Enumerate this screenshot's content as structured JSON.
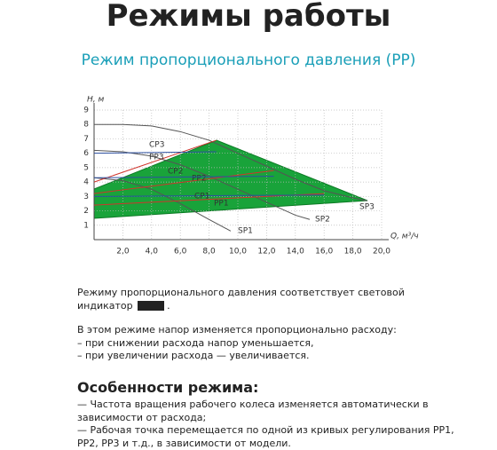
{
  "header": {
    "title": "Режимы работы",
    "subtitle": "Режим пропорционального давления (PP)"
  },
  "chart_data": {
    "type": "line",
    "xlabel": "Q, м³/ч",
    "ylabel": "H, м",
    "xlim": [
      0,
      20
    ],
    "ylim": [
      0,
      9
    ],
    "xticks": [
      {
        "value": 2,
        "label": "2,0"
      },
      {
        "value": 4,
        "label": "4,0"
      },
      {
        "value": 6,
        "label": "6,0"
      },
      {
        "value": 8,
        "label": "8,0"
      },
      {
        "value": 10,
        "label": "10,0"
      },
      {
        "value": 12,
        "label": "12,0"
      },
      {
        "value": 14,
        "label": "14,0"
      },
      {
        "value": 16,
        "label": "16,0"
      },
      {
        "value": 18,
        "label": "18,0"
      },
      {
        "value": 20,
        "label": "20,0"
      }
    ],
    "yticks": [
      1,
      2,
      3,
      4,
      5,
      6,
      7,
      8,
      9
    ],
    "grid": true,
    "series": [
      {
        "name": "SP1",
        "color": "#555555",
        "x": [
          0,
          2,
          4,
          6,
          8,
          9.5
        ],
        "values": [
          4.3,
          4.1,
          3.5,
          2.5,
          1.4,
          0.6
        ]
      },
      {
        "name": "SP2",
        "color": "#555555",
        "x": [
          0,
          2,
          4,
          6,
          8,
          10,
          12,
          14,
          15
        ],
        "values": [
          6.2,
          6.1,
          5.8,
          5.2,
          4.4,
          3.5,
          2.6,
          1.7,
          1.4
        ]
      },
      {
        "name": "SP3",
        "color": "#555555",
        "x": [
          0,
          2,
          4,
          6,
          8,
          10,
          12,
          14,
          16,
          18,
          19
        ],
        "values": [
          8,
          8,
          7.9,
          7.5,
          6.9,
          6,
          5.1,
          4.2,
          3.4,
          2.9,
          2.7
        ]
      },
      {
        "name": "PP1",
        "color": "#d0342c",
        "x": [
          0,
          16
        ],
        "values": [
          2.4,
          3.2
        ]
      },
      {
        "name": "PP2",
        "color": "#d0342c",
        "x": [
          0,
          12.5
        ],
        "values": [
          3.2,
          4.8
        ]
      },
      {
        "name": "PP3",
        "color": "#d0342c",
        "x": [
          0,
          8.5
        ],
        "values": [
          4,
          6.9
        ]
      },
      {
        "name": "CP1",
        "color": "#2c4fa0",
        "x": [
          0,
          16
        ],
        "values": [
          3,
          3.1
        ]
      },
      {
        "name": "CP2",
        "color": "#2c4fa0",
        "x": [
          0,
          12.5
        ],
        "values": [
          4.3,
          4.4
        ]
      },
      {
        "name": "CP3",
        "color": "#2c4fa0",
        "x": [
          0,
          8.5
        ],
        "values": [
          6,
          6.1
        ]
      }
    ]
  },
  "text": {
    "p1": [
      "Режиму пропорционального давления соответствует световой",
      "индикатор"
    ],
    "p1_end": ".",
    "p2": [
      "В этом режиме напор изменяется пропорционально расходу:",
      "– при снижении расхода напор уменьшается,",
      "– при увеличении расхода — увеличивается."
    ],
    "heading": "Особенности режима:",
    "list": [
      "— Частота вращения рабочего колеса изменяется автоматически в",
      "зависимости от расхода;",
      "— Рабочая точка перемещается по одной из кривых регулирования PP1,",
      "PP2, PP3 и т.д., в зависимости от модели."
    ]
  }
}
